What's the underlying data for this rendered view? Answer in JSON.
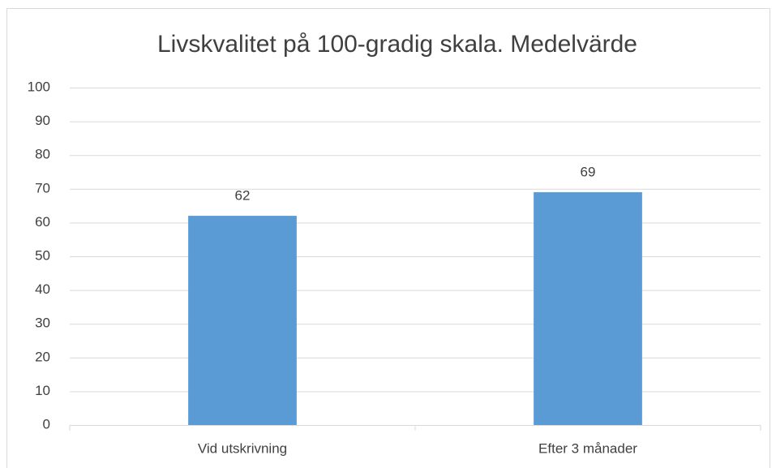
{
  "chart_data": {
    "type": "bar",
    "title": "Livskvalitet på 100-gradig skala. Medelvärde",
    "categories": [
      "Vid utskrivning",
      "Efter 3 månader"
    ],
    "values": [
      62,
      69
    ],
    "color": "#5b9bd5",
    "ylim": [
      0,
      100
    ],
    "yticks": [
      0,
      10,
      20,
      30,
      40,
      50,
      60,
      70,
      80,
      90,
      100
    ],
    "grid": true
  }
}
